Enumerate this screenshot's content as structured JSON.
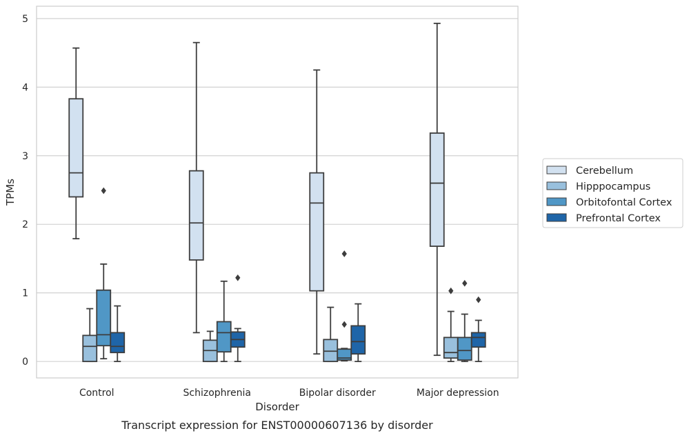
{
  "chart_data": {
    "type": "box",
    "title": "Transcript expression for ENST00000607136 by disorder",
    "xlabel": "Disorder",
    "ylabel": "TPMs",
    "ylim": [
      -0.24,
      5.18
    ],
    "yticks": [
      0,
      1,
      2,
      3,
      4,
      5
    ],
    "grid": "horizontal",
    "legend_position": "right",
    "categories": [
      "Control",
      "Schizophrenia",
      "Bipolar disorder",
      "Major depression"
    ],
    "series": [
      {
        "name": "Cerebellum",
        "color": "#d2e1f0",
        "boxes": [
          {
            "whisker_low": 1.79,
            "q1": 2.4,
            "median": 2.75,
            "q3": 3.83,
            "whisker_high": 4.57,
            "outliers": []
          },
          {
            "whisker_low": 0.42,
            "q1": 1.48,
            "median": 2.02,
            "q3": 2.78,
            "whisker_high": 4.65,
            "outliers": []
          },
          {
            "whisker_low": 0.11,
            "q1": 1.03,
            "median": 2.31,
            "q3": 2.75,
            "whisker_high": 4.25,
            "outliers": []
          },
          {
            "whisker_low": 0.09,
            "q1": 1.68,
            "median": 2.6,
            "q3": 3.33,
            "whisker_high": 4.93,
            "outliers": []
          }
        ]
      },
      {
        "name": "Hipppocampus",
        "color": "#99c0dd",
        "boxes": [
          {
            "whisker_low": 0.0,
            "q1": 0.0,
            "median": 0.22,
            "q3": 0.38,
            "whisker_high": 0.77,
            "outliers": []
          },
          {
            "whisker_low": 0.0,
            "q1": 0.0,
            "median": 0.16,
            "q3": 0.31,
            "whisker_high": 0.44,
            "outliers": []
          },
          {
            "whisker_low": 0.0,
            "q1": 0.0,
            "median": 0.15,
            "q3": 0.32,
            "whisker_high": 0.79,
            "outliers": []
          },
          {
            "whisker_low": 0.0,
            "q1": 0.05,
            "median": 0.13,
            "q3": 0.35,
            "whisker_high": 0.73,
            "outliers": [
              1.03
            ]
          }
        ]
      },
      {
        "name": "Orbitofontal Cortex",
        "color": "#5097c6",
        "boxes": [
          {
            "whisker_low": 0.04,
            "q1": 0.23,
            "median": 0.39,
            "q3": 1.04,
            "whisker_high": 1.42,
            "outliers": [
              2.49
            ]
          },
          {
            "whisker_low": 0.0,
            "q1": 0.14,
            "median": 0.42,
            "q3": 0.58,
            "whisker_high": 1.17,
            "outliers": []
          },
          {
            "whisker_low": 0.01,
            "q1": 0.02,
            "median": 0.05,
            "q3": 0.18,
            "whisker_high": 0.19,
            "outliers": [
              0.54,
              1.57
            ]
          },
          {
            "whisker_low": 0.0,
            "q1": 0.02,
            "median": 0.16,
            "q3": 0.35,
            "whisker_high": 0.69,
            "outliers": [
              1.14
            ]
          }
        ]
      },
      {
        "name": "Prefrontal Cortex",
        "color": "#1f65a8",
        "boxes": [
          {
            "whisker_low": 0.0,
            "q1": 0.13,
            "median": 0.22,
            "q3": 0.42,
            "whisker_high": 0.81,
            "outliers": []
          },
          {
            "whisker_low": 0.0,
            "q1": 0.21,
            "median": 0.32,
            "q3": 0.43,
            "whisker_high": 0.48,
            "outliers": [
              1.22
            ]
          },
          {
            "whisker_low": 0.0,
            "q1": 0.11,
            "median": 0.29,
            "q3": 0.52,
            "whisker_high": 0.84,
            "outliers": []
          },
          {
            "whisker_low": 0.0,
            "q1": 0.21,
            "median": 0.35,
            "q3": 0.42,
            "whisker_high": 0.6,
            "outliers": [
              0.9
            ]
          }
        ]
      }
    ]
  }
}
